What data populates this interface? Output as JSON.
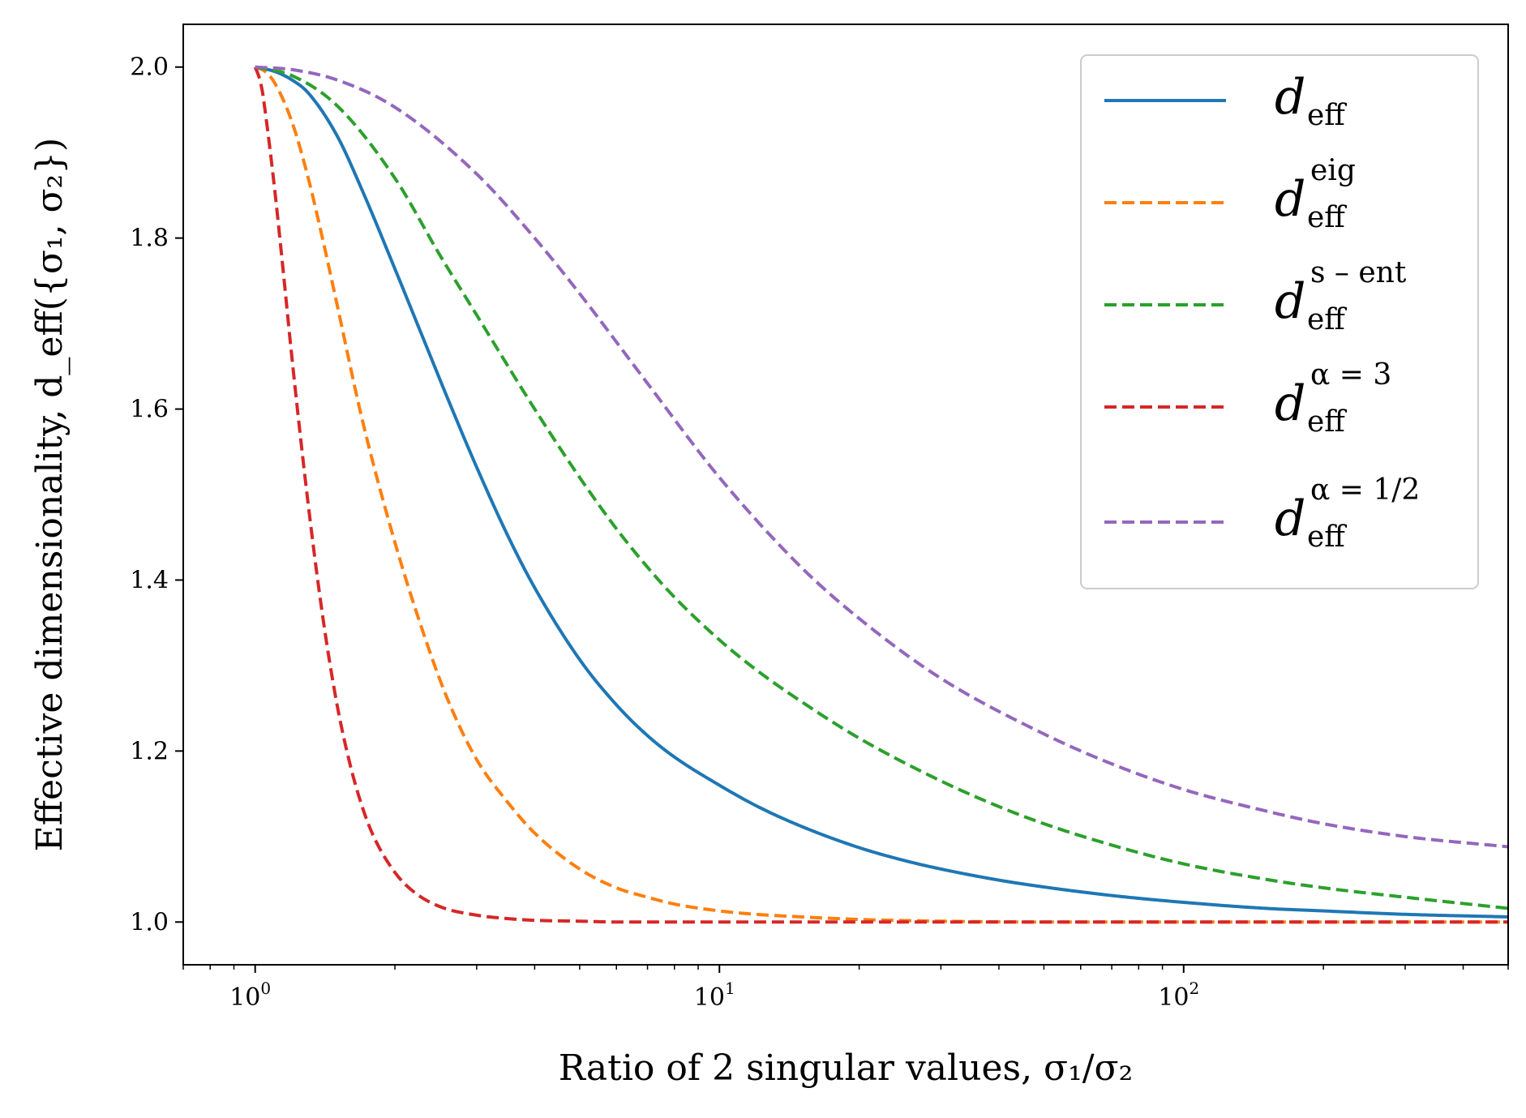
{
  "chart_data": {
    "type": "line",
    "title": "",
    "xlabel": "Ratio of 2 singular values, σ₁/σ₂",
    "ylabel": "Effective dimensionality, d_eff({σ₁, σ₂})",
    "xscale": "log",
    "xlim": [
      0.7,
      500
    ],
    "ylim": [
      0.95,
      2.05
    ],
    "grid": false,
    "legend_position": "top-right",
    "x_ticks": [
      {
        "value": 1,
        "base": "10",
        "exp": "0"
      },
      {
        "value": 10,
        "base": "10",
        "exp": "1"
      },
      {
        "value": 100,
        "base": "10",
        "exp": "2"
      }
    ],
    "y_ticks": [
      {
        "value": 1.0,
        "label": "1.0"
      },
      {
        "value": 1.2,
        "label": "1.2"
      },
      {
        "value": 1.4,
        "label": "1.4"
      },
      {
        "value": 1.6,
        "label": "1.6"
      },
      {
        "value": 1.8,
        "label": "1.8"
      },
      {
        "value": 2.0,
        "label": "2.0"
      }
    ],
    "series": [
      {
        "name": "d_eff",
        "legend_main": "d",
        "legend_sub": "eff",
        "legend_sup": "",
        "color": "#1f77b4",
        "dash": "solid",
        "x": [
          1,
          1.1,
          1.2,
          1.3,
          1.5,
          1.7,
          2,
          2.3,
          2.6,
          3,
          3.5,
          4,
          5,
          6,
          7,
          8,
          10,
          12,
          15,
          20,
          25,
          30,
          40,
          50,
          70,
          100,
          150,
          200,
          300,
          500
        ],
        "y": [
          2.0,
          1.995,
          1.985,
          1.97,
          1.92,
          1.856,
          1.764,
          1.683,
          1.612,
          1.532,
          1.452,
          1.391,
          1.307,
          1.254,
          1.218,
          1.193,
          1.16,
          1.136,
          1.112,
          1.087,
          1.072,
          1.062,
          1.049,
          1.041,
          1.031,
          1.023,
          1.016,
          1.013,
          1.009,
          1.006
        ]
      },
      {
        "name": "d_eff^eig",
        "legend_main": "d",
        "legend_sub": "eff",
        "legend_sup": "eig",
        "color": "#ff7f0e",
        "dash": "dashed",
        "x": [
          1,
          1.05,
          1.1,
          1.2,
          1.3,
          1.4,
          1.5,
          1.7,
          2,
          2.3,
          2.6,
          3,
          3.5,
          4,
          5,
          6,
          7,
          8,
          10,
          12,
          15,
          20,
          30,
          50,
          100,
          500
        ],
        "y": [
          2.0,
          1.995,
          1.982,
          1.936,
          1.871,
          1.797,
          1.723,
          1.588,
          1.444,
          1.339,
          1.26,
          1.19,
          1.14,
          1.104,
          1.062,
          1.04,
          1.029,
          1.021,
          1.013,
          1.009,
          1.006,
          1.003,
          1.001,
          1.0,
          1.0,
          1.0
        ]
      },
      {
        "name": "d_eff^s-ent",
        "legend_main": "d",
        "legend_sub": "eff",
        "legend_sup": "s – ent",
        "color": "#2ca02c",
        "dash": "dashed",
        "x": [
          1,
          1.2,
          1.5,
          2,
          2.5,
          3,
          4,
          5,
          6,
          7,
          8,
          10,
          12,
          15,
          20,
          30,
          40,
          50,
          70,
          100,
          150,
          200,
          300,
          500
        ],
        "y": [
          2.0,
          1.99,
          1.955,
          1.87,
          1.78,
          1.71,
          1.6,
          1.52,
          1.46,
          1.415,
          1.38,
          1.33,
          1.295,
          1.258,
          1.215,
          1.165,
          1.135,
          1.115,
          1.09,
          1.068,
          1.05,
          1.04,
          1.029,
          1.016
        ]
      },
      {
        "name": "d_eff^alpha=3",
        "legend_main": "d",
        "legend_sub": "eff",
        "legend_sup": "α = 3",
        "color": "#d62728",
        "dash": "dashed",
        "x": [
          1,
          1.03,
          1.05,
          1.1,
          1.15,
          1.2,
          1.3,
          1.4,
          1.5,
          1.6,
          1.7,
          1.8,
          2,
          2.2,
          2.5,
          3,
          3.5,
          4,
          5,
          6,
          8,
          10,
          20,
          50,
          500
        ],
        "y": [
          2.0,
          1.98,
          1.95,
          1.86,
          1.76,
          1.66,
          1.49,
          1.355,
          1.255,
          1.185,
          1.135,
          1.1,
          1.058,
          1.035,
          1.018,
          1.008,
          1.004,
          1.002,
          1.001,
          1.0,
          1.0,
          1.0,
          1.0,
          1.0,
          1.0
        ]
      },
      {
        "name": "d_eff^alpha=1/2",
        "legend_main": "d",
        "legend_sub": "eff",
        "legend_sup": "α = 1/2",
        "color": "#9467bd",
        "dash": "dashed",
        "x": [
          1,
          1.2,
          1.5,
          2,
          3,
          4,
          5,
          7,
          10,
          15,
          20,
          30,
          50,
          70,
          100,
          150,
          200,
          300,
          500
        ],
        "y": [
          2.0,
          1.997,
          1.985,
          1.953,
          1.875,
          1.8,
          1.735,
          1.63,
          1.52,
          1.415,
          1.355,
          1.285,
          1.22,
          1.185,
          1.155,
          1.13,
          1.115,
          1.1,
          1.088
        ]
      }
    ]
  }
}
